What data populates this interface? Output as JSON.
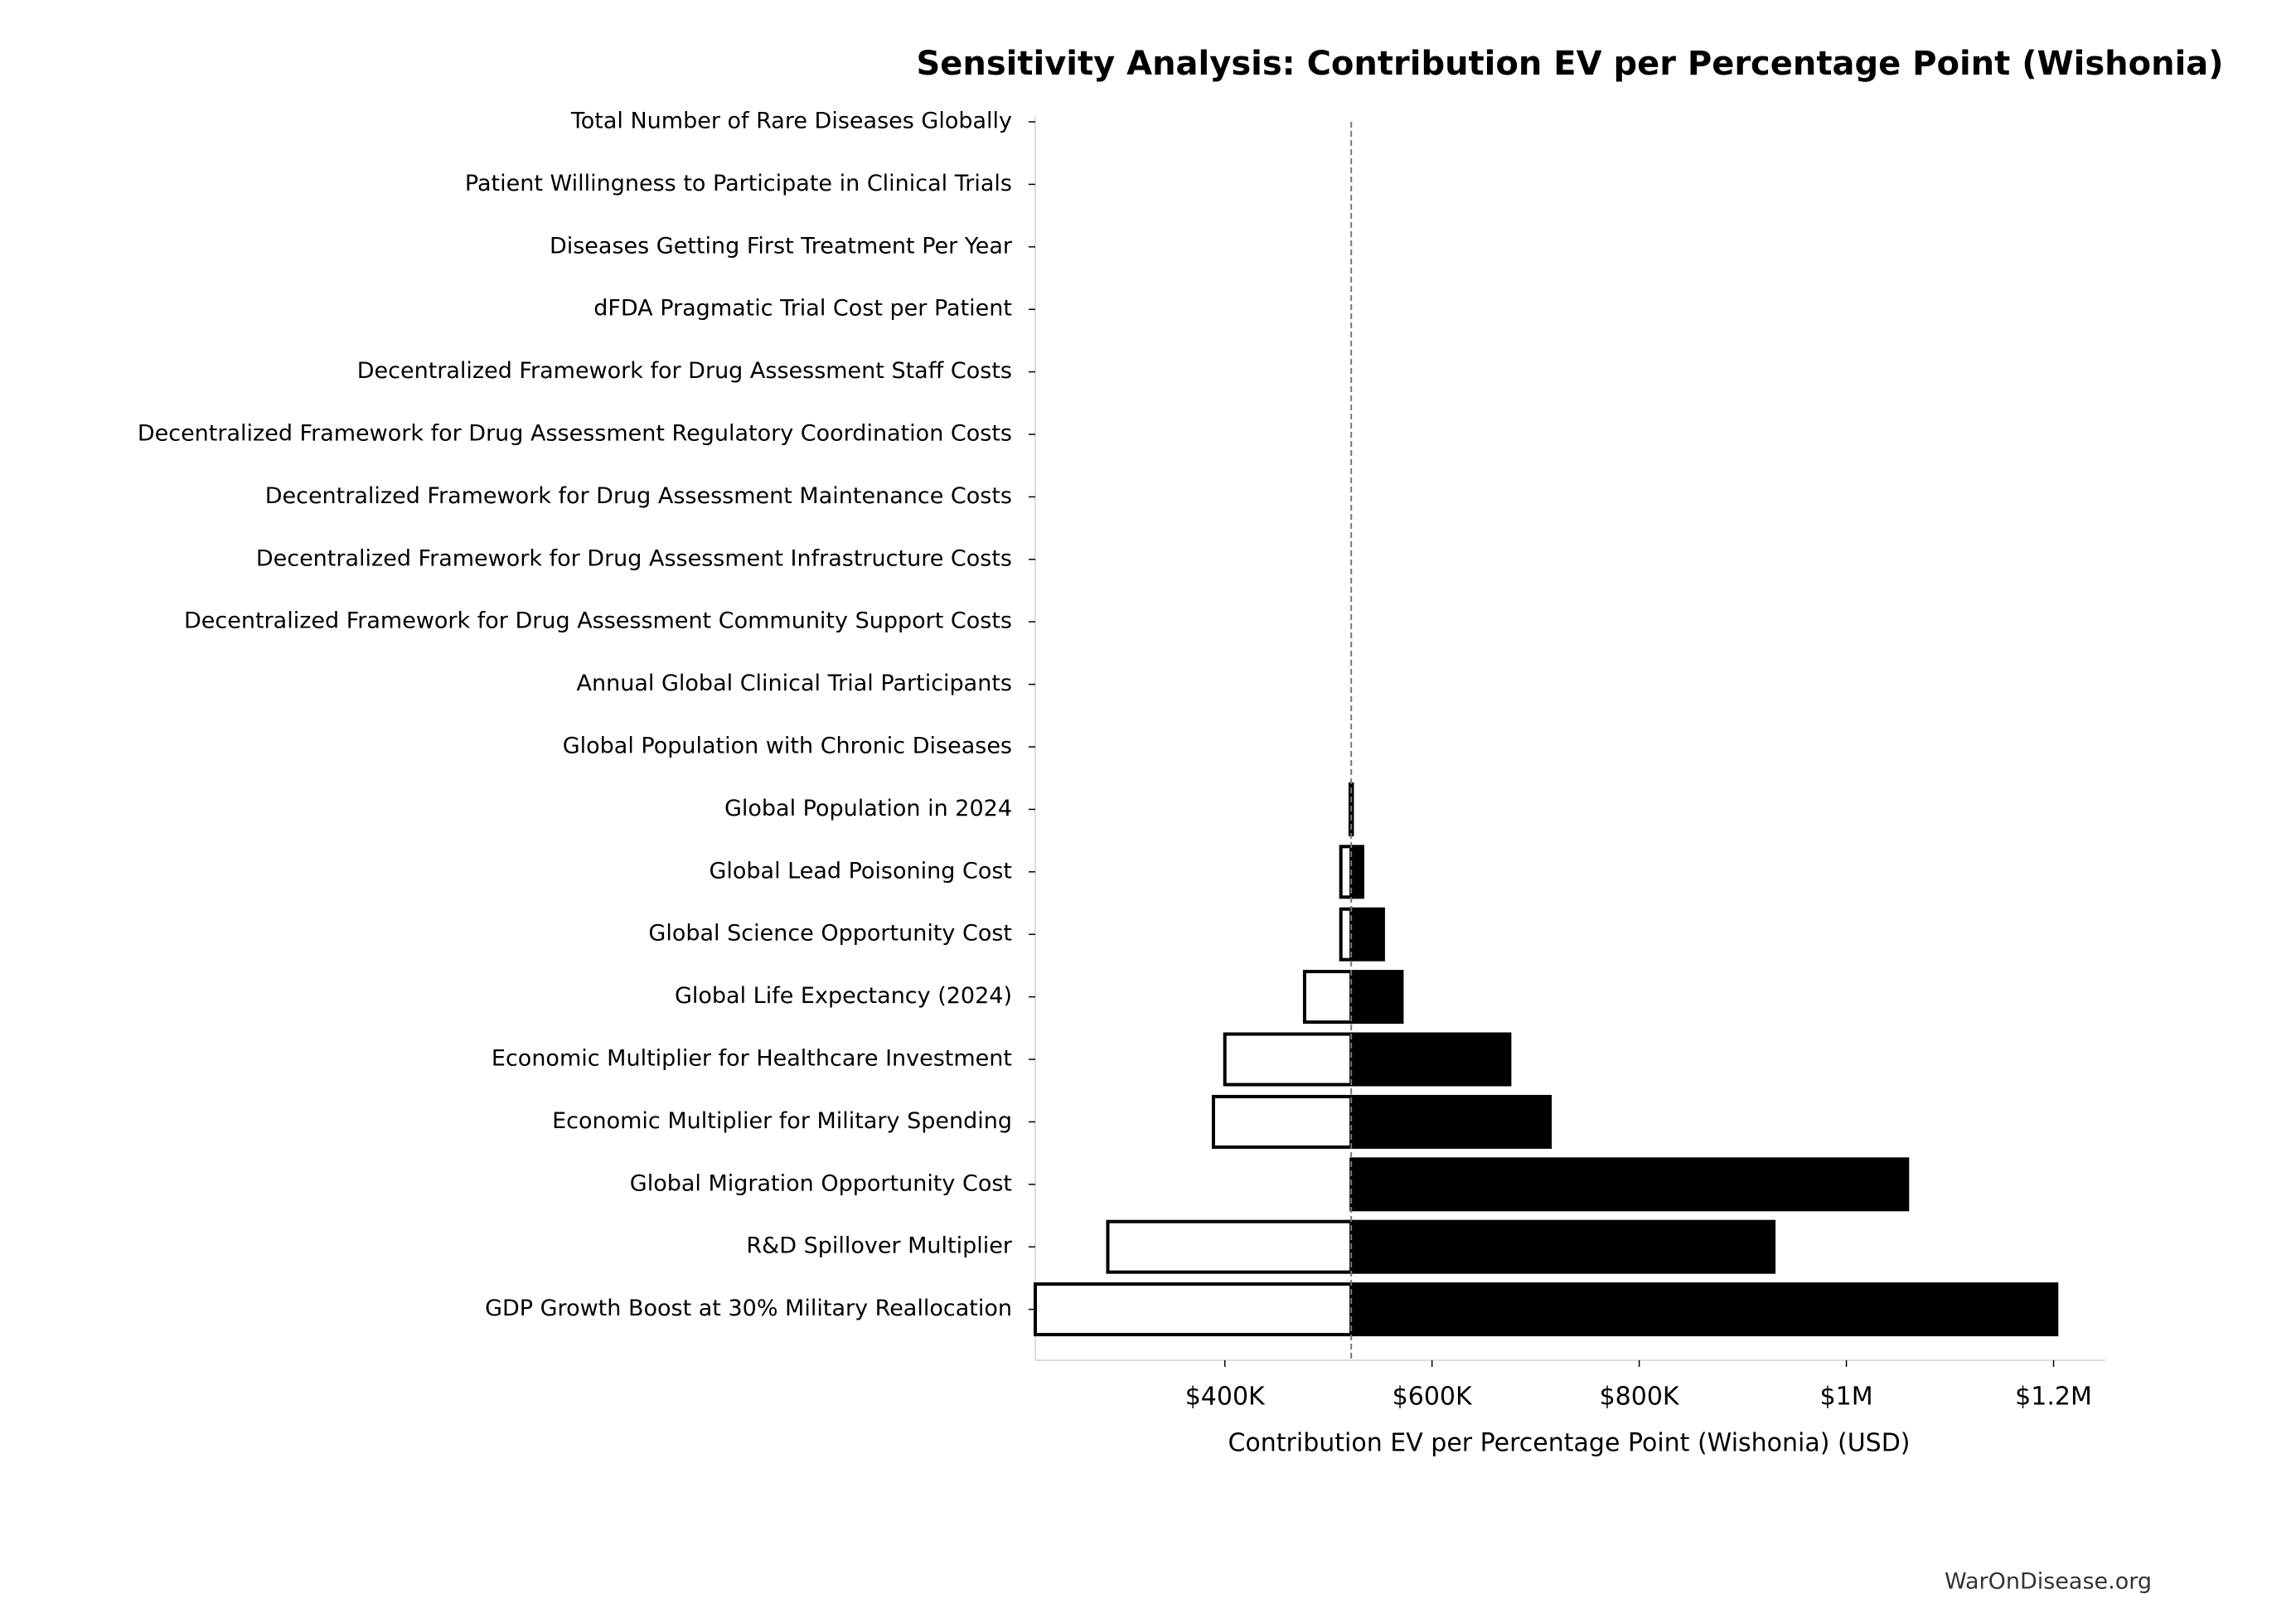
{
  "chart_data": {
    "type": "tornado",
    "title": "Sensitivity Analysis: Contribution EV per Percentage Point (Wishonia)",
    "xlabel": "Contribution EV per Percentage Point (Wishonia) (USD)",
    "footer": "WarOnDisease.org",
    "categories": [
      "Total Number of Rare Diseases Globally",
      "Patient Willingness to Participate in Clinical Trials",
      "Diseases Getting First Treatment Per Year",
      "dFDA Pragmatic Trial Cost per Patient",
      "Decentralized Framework for Drug Assessment Staff Costs",
      "Decentralized Framework for Drug Assessment Regulatory Coordination Costs",
      "Decentralized Framework for Drug Assessment Maintenance Costs",
      "Decentralized Framework for Drug Assessment Infrastructure Costs",
      "Decentralized Framework for Drug Assessment Community Support Costs",
      "Annual Global Clinical Trial Participants",
      "Global Population with Chronic Diseases",
      "Global Population in 2024",
      "Global Lead Poisoning Cost",
      "Global Science Opportunity Cost",
      "Global Life Expectancy (2024)",
      "Economic Multiplier for Healthcare Investment",
      "Economic Multiplier for Military Spending",
      "Global Migration Opportunity Cost",
      "R&D Spillover Multiplier",
      "GDP Growth Boost at 30% Military Reallocation"
    ],
    "baseline": 522000,
    "series": [
      {
        "color": "#ffffff",
        "values": [
          522000,
          522000,
          522000,
          522000,
          522000,
          522000,
          522000,
          522000,
          522000,
          522000,
          522000,
          521000,
          512000,
          512000,
          477000,
          400000,
          389000,
          522000,
          287000,
          217000
        ]
      },
      {
        "color": "#000000",
        "values": [
          522000,
          522000,
          522000,
          522000,
          522000,
          522000,
          522000,
          522000,
          522000,
          522000,
          522000,
          523000,
          533000,
          553000,
          571000,
          675000,
          714000,
          1059000,
          930000,
          1203000
        ]
      }
    ],
    "xlim": [
      217000,
      1250000
    ],
    "xticks": [
      {
        "value": 400000,
        "label": "$400K"
      },
      {
        "value": 600000,
        "label": "$600K"
      },
      {
        "value": 800000,
        "label": "$800K"
      },
      {
        "value": 1000000,
        "label": "$1M"
      },
      {
        "value": 1200000,
        "label": "$1.2M"
      }
    ]
  }
}
